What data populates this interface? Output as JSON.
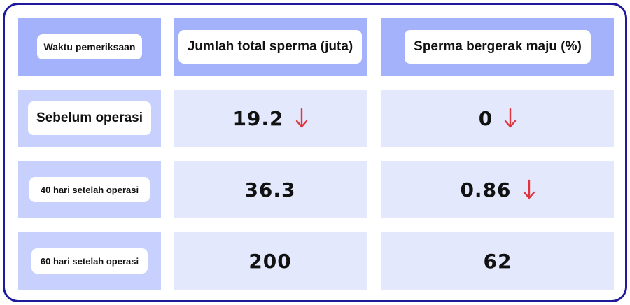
{
  "table": {
    "headers": [
      "Waktu pemeriksaan",
      "Jumlah total sperma (juta)",
      "Sperma bergerak maju (%)"
    ],
    "rows": [
      {
        "label": "Sebelum operasi",
        "total": "19.2",
        "total_down": true,
        "motile": "0",
        "motile_down": true
      },
      {
        "label": "40 hari setelah operasi",
        "total": "36.3",
        "total_down": false,
        "motile": "0.86",
        "motile_down": true
      },
      {
        "label": "60 hari setelah operasi",
        "total": "200",
        "total_down": false,
        "motile": "62",
        "motile_down": false
      }
    ]
  },
  "colors": {
    "border": "#1f1a9c",
    "header_bg": "#a4b1fb",
    "label_bg": "#c8d1fd",
    "value_bg": "#e4e8fd",
    "arrow": "#e0343c"
  },
  "icons": {
    "decrease": "arrow-down-icon"
  }
}
